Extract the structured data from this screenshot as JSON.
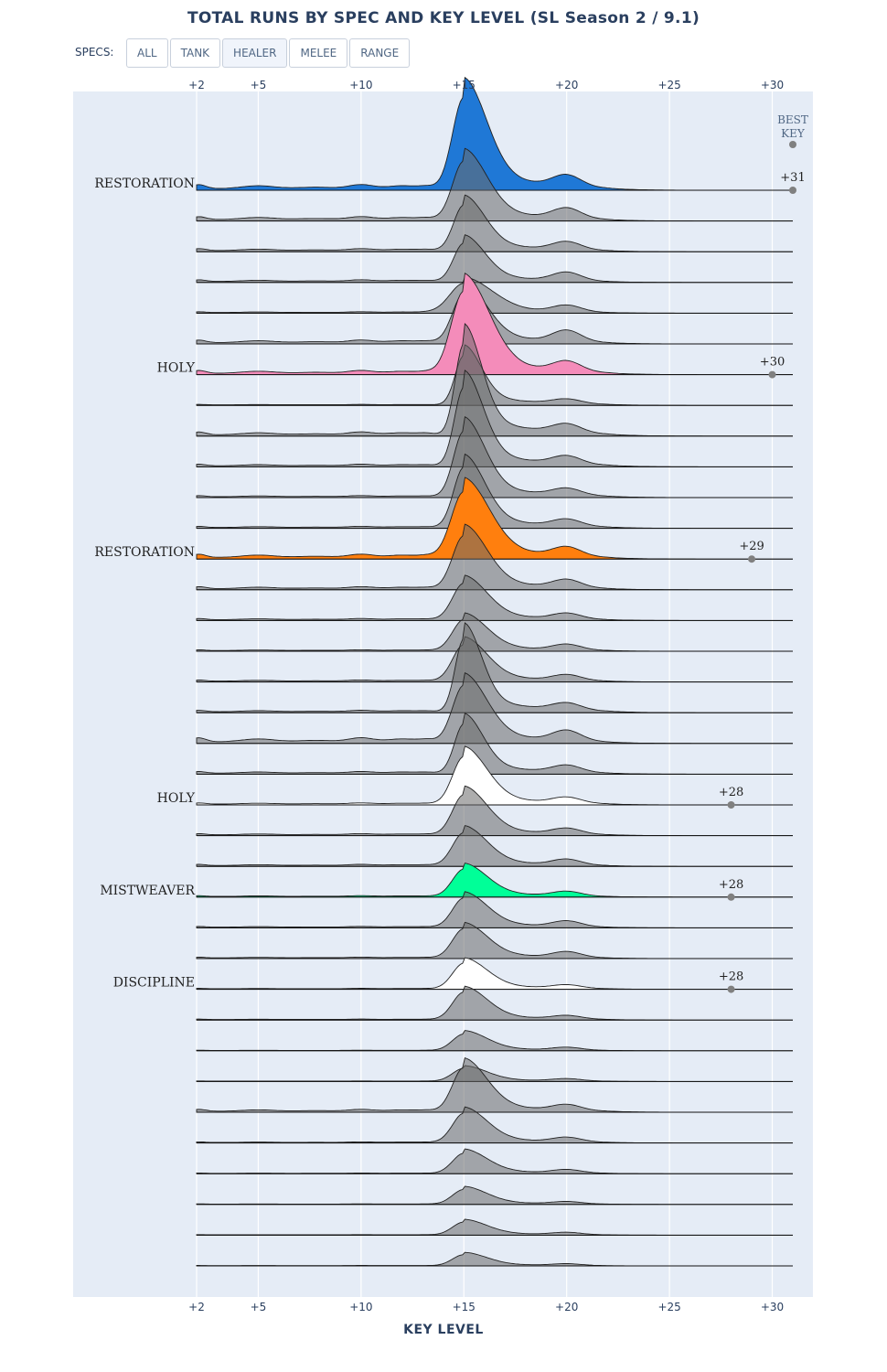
{
  "title": "TOTAL RUNS BY SPEC AND KEY LEVEL (SL Season 2 / 9.1)",
  "controls": {
    "label": "SPECS:",
    "buttons": [
      "ALL",
      "TANK",
      "HEALER",
      "MELEE",
      "RANGE"
    ],
    "active": "HEALER"
  },
  "colors": {
    "plot_bg": "#e5ecf6",
    "grid": "#ffffff",
    "gray_fill": "rgba(105,105,105,0.55)",
    "gray_line": "#222222",
    "best_marker": "#808080"
  },
  "chart_data": {
    "type": "area",
    "subtype": "ridgeline",
    "xlabel": "KEY LEVEL",
    "xlim": [
      2,
      31
    ],
    "xticks": [
      2,
      5,
      10,
      15,
      20,
      25,
      30
    ],
    "xtick_labels": [
      "+2",
      "+5",
      "+10",
      "+15",
      "+20",
      "+25",
      "+30"
    ],
    "best_key_header": [
      "BEST",
      "KEY"
    ],
    "grid": true,
    "highlighted": [
      {
        "label": "RESTORATION",
        "row": 0,
        "color": "#1f78d6",
        "best_key": 31,
        "best_key_label": "+31"
      },
      {
        "label": "HOLY",
        "row": 6,
        "color": "#f48cba",
        "best_key": 30,
        "best_key_label": "+30"
      },
      {
        "label": "RESTORATION",
        "row": 12,
        "color": "#ff7f0e",
        "best_key": 29,
        "best_key_label": "+29"
      },
      {
        "label": "HOLY",
        "row": 20,
        "color": "#ffffff",
        "best_key": 28,
        "best_key_label": "+28"
      },
      {
        "label": "MISTWEAVER",
        "row": 23,
        "color": "#00ff98",
        "best_key": 28,
        "best_key_label": "+28"
      },
      {
        "label": "DISCIPLINE",
        "row": 26,
        "color": "#ffffff",
        "best_key": 28,
        "best_key_label": "+28"
      }
    ],
    "rows": [
      {
        "row": 0,
        "peak": 1.0,
        "base": 0.2,
        "wave": 1.0,
        "p20": 0.2,
        "sharp": 1.0
      },
      {
        "row": 1,
        "peak": 0.64,
        "base": 0.18,
        "wave": 0.8,
        "p20": 0.18,
        "sharp": 1.0
      },
      {
        "row": 2,
        "peak": 0.5,
        "base": 0.14,
        "wave": 0.7,
        "p20": 0.14,
        "sharp": 1.1
      },
      {
        "row": 3,
        "peak": 0.42,
        "base": 0.12,
        "wave": 0.7,
        "p20": 0.15,
        "sharp": 1.1
      },
      {
        "row": 4,
        "peak": 0.32,
        "base": 0.08,
        "wave": 0.5,
        "p20": 0.12,
        "sharp": 0.8
      },
      {
        "row": 5,
        "peak": 0.54,
        "base": 0.16,
        "wave": 0.8,
        "p20": 0.2,
        "sharp": 1.0
      },
      {
        "row": 6,
        "peak": 0.9,
        "base": 0.16,
        "wave": 0.9,
        "p20": 0.18,
        "sharp": 0.9
      },
      {
        "row": 7,
        "peak": 0.54,
        "base": 0.06,
        "wave": 0.4,
        "p20": 0.08,
        "sharp": 1.3
      },
      {
        "row": 8,
        "peak": 1.0,
        "base": 0.16,
        "wave": 0.9,
        "p20": 0.15,
        "sharp": 1.3
      },
      {
        "row": 9,
        "peak": 0.86,
        "base": 0.12,
        "wave": 0.7,
        "p20": 0.14,
        "sharp": 1.2
      },
      {
        "row": 10,
        "peak": 0.72,
        "base": 0.1,
        "wave": 0.6,
        "p20": 0.12,
        "sharp": 1.1
      },
      {
        "row": 11,
        "peak": 0.66,
        "base": 0.1,
        "wave": 0.6,
        "p20": 0.12,
        "sharp": 1.1
      },
      {
        "row": 12,
        "peak": 0.72,
        "base": 0.2,
        "wave": 0.8,
        "p20": 0.16,
        "sharp": 0.9
      },
      {
        "row": 13,
        "peak": 0.58,
        "base": 0.14,
        "wave": 0.7,
        "p20": 0.14,
        "sharp": 1.0
      },
      {
        "row": 14,
        "peak": 0.4,
        "base": 0.1,
        "wave": 0.6,
        "p20": 0.1,
        "sharp": 1.0
      },
      {
        "row": 15,
        "peak": 0.34,
        "base": 0.08,
        "wave": 0.5,
        "p20": 0.1,
        "sharp": 1.0
      },
      {
        "row": 16,
        "peak": 0.4,
        "base": 0.1,
        "wave": 0.6,
        "p20": 0.1,
        "sharp": 1.0
      },
      {
        "row": 17,
        "peak": 0.8,
        "base": 0.12,
        "wave": 0.6,
        "p20": 0.12,
        "sharp": 1.3
      },
      {
        "row": 18,
        "peak": 0.62,
        "base": 0.2,
        "wave": 1.0,
        "p20": 0.18,
        "sharp": 1.0
      },
      {
        "row": 19,
        "peak": 0.54,
        "base": 0.12,
        "wave": 0.7,
        "p20": 0.12,
        "sharp": 1.2
      },
      {
        "row": 20,
        "peak": 0.52,
        "base": 0.1,
        "wave": 0.6,
        "p20": 0.1,
        "sharp": 1.0
      },
      {
        "row": 21,
        "peak": 0.44,
        "base": 0.1,
        "wave": 0.6,
        "p20": 0.1,
        "sharp": 1.0
      },
      {
        "row": 22,
        "peak": 0.36,
        "base": 0.1,
        "wave": 0.6,
        "p20": 0.1,
        "sharp": 1.0
      },
      {
        "row": 23,
        "peak": 0.3,
        "base": 0.08,
        "wave": 0.5,
        "p20": 0.08,
        "sharp": 1.0
      },
      {
        "row": 24,
        "peak": 0.32,
        "base": 0.08,
        "wave": 0.5,
        "p20": 0.1,
        "sharp": 1.0
      },
      {
        "row": 25,
        "peak": 0.32,
        "base": 0.08,
        "wave": 0.5,
        "p20": 0.1,
        "sharp": 1.0
      },
      {
        "row": 26,
        "peak": 0.28,
        "base": 0.06,
        "wave": 0.4,
        "p20": 0.06,
        "sharp": 1.0
      },
      {
        "row": 27,
        "peak": 0.3,
        "base": 0.06,
        "wave": 0.4,
        "p20": 0.06,
        "sharp": 1.0
      },
      {
        "row": 28,
        "peak": 0.18,
        "base": 0.04,
        "wave": 0.3,
        "p20": 0.05,
        "sharp": 1.0
      },
      {
        "row": 29,
        "peak": 0.14,
        "base": 0.04,
        "wave": 0.3,
        "p20": 0.04,
        "sharp": 1.0
      },
      {
        "row": 30,
        "peak": 0.48,
        "base": 0.12,
        "wave": 0.8,
        "p20": 0.1,
        "sharp": 1.0
      },
      {
        "row": 31,
        "peak": 0.32,
        "base": 0.06,
        "wave": 0.5,
        "p20": 0.08,
        "sharp": 1.0
      },
      {
        "row": 32,
        "peak": 0.22,
        "base": 0.04,
        "wave": 0.4,
        "p20": 0.06,
        "sharp": 1.0
      },
      {
        "row": 33,
        "peak": 0.16,
        "base": 0.04,
        "wave": 0.3,
        "p20": 0.04,
        "sharp": 1.0
      },
      {
        "row": 34,
        "peak": 0.14,
        "base": 0.04,
        "wave": 0.3,
        "p20": 0.04,
        "sharp": 1.0
      },
      {
        "row": 35,
        "peak": 0.12,
        "base": 0.03,
        "wave": 0.3,
        "p20": 0.03,
        "sharp": 1.0
      }
    ]
  }
}
